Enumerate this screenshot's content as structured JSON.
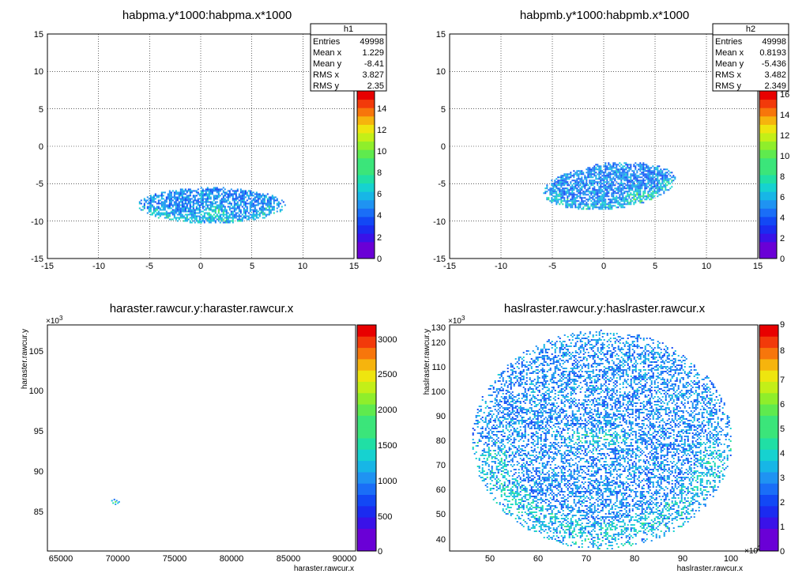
{
  "chart_data": [
    {
      "type": "heatmap",
      "title": "habpma.y*1000:habpma.x*1000",
      "xlabel": "",
      "ylabel": "",
      "xlim": [
        -15,
        15
      ],
      "ylim": [
        -15,
        15
      ],
      "x_ticks": [
        "-15",
        "-10",
        "-5",
        "0",
        "5",
        "10",
        "15"
      ],
      "y_ticks": [
        "-15",
        "-10",
        "-5",
        "0",
        "5",
        "10",
        "15"
      ],
      "grid": true,
      "colorbar": {
        "min": 0,
        "max": 16,
        "ticks": [
          "0",
          "2",
          "4",
          "6",
          "8",
          "10",
          "12",
          "14"
        ]
      },
      "stats_box": {
        "name": "h1",
        "rows": [
          {
            "label": "Entries",
            "value": "49998"
          },
          {
            "label": "Mean x",
            "value": "1.229"
          },
          {
            "label": "Mean y",
            "value": "-8.41"
          },
          {
            "label": "RMS x",
            "value": "3.827"
          },
          {
            "label": "RMS y",
            "value": "2.35"
          }
        ]
      },
      "distribution": {
        "shape": "ellipse",
        "center": [
          1.0,
          -7.8
        ],
        "semi_axes": [
          7.2,
          2.4
        ],
        "hot_spot": [
          1.4,
          -8.7
        ]
      }
    },
    {
      "type": "heatmap",
      "title": "habpmb.y*1000:habpmb.x*1000",
      "xlabel": "",
      "ylabel": "",
      "xlim": [
        -15,
        15
      ],
      "ylim": [
        -15,
        15
      ],
      "x_ticks": [
        "-15",
        "-10",
        "-5",
        "0",
        "5",
        "10",
        "15"
      ],
      "y_ticks": [
        "-15",
        "-10",
        "-5",
        "0",
        "5",
        "10",
        "15"
      ],
      "grid": true,
      "colorbar": {
        "min": 0,
        "max": 16,
        "ticks": [
          "0",
          "2",
          "4",
          "6",
          "8",
          "10",
          "12",
          "14",
          "16"
        ]
      },
      "stats_box": {
        "name": "h2",
        "rows": [
          {
            "label": "Entries",
            "value": "49998"
          },
          {
            "label": "Mean x",
            "value": "0.8193"
          },
          {
            "label": "Mean y",
            "value": "-5.436"
          },
          {
            "label": "RMS x",
            "value": "3.482"
          },
          {
            "label": "RMS y",
            "value": "2.349"
          }
        ]
      },
      "distribution": {
        "shape": "ellipse",
        "center": [
          0.5,
          -5.2
        ],
        "semi_axes": [
          6.5,
          3.1
        ],
        "tilt_deg": 10,
        "hot_spot": [
          3.5,
          -6.5
        ]
      }
    },
    {
      "type": "heatmap",
      "title": "haraster.rawcur.y:haraster.rawcur.x",
      "xlabel": "haraster.rawcur.x",
      "ylabel": "haraster.rawcur.y",
      "xlim": [
        64000,
        91000
      ],
      "ylim": [
        80000,
        109000
      ],
      "x_ticks": [
        "65000",
        "70000",
        "75000",
        "80000",
        "85000",
        "90000"
      ],
      "y_ticks": [
        "85",
        "90",
        "95",
        "100",
        "105"
      ],
      "y_multiplier": "×10",
      "y_multiplier_exp": "3",
      "colorbar": {
        "min": 0,
        "max": 3200,
        "ticks": [
          "0",
          "500",
          "1000",
          "1500",
          "2000",
          "2500",
          "3000"
        ]
      },
      "distribution": {
        "shape": "point",
        "center": [
          69900,
          86400
        ]
      }
    },
    {
      "type": "heatmap",
      "title": "haslraster.rawcur.y:haslraster.rawcur.x",
      "xlabel": "haslraster.rawcur.x",
      "ylabel": "haslraster.rawcur.y",
      "xlim": [
        42,
        106
      ],
      "ylim": [
        34,
        131
      ],
      "x_ticks": [
        "50",
        "60",
        "70",
        "80",
        "90",
        "100"
      ],
      "x_multiplier": "×10",
      "x_multiplier_exp": "3",
      "y_ticks": [
        "40",
        "50",
        "60",
        "70",
        "80",
        "90",
        "100",
        "110",
        "120",
        "130"
      ],
      "y_multiplier": "×10",
      "y_multiplier_exp": "3",
      "colorbar": {
        "min": 0,
        "max": 9,
        "ticks": [
          "0",
          "1",
          "2",
          "3",
          "4",
          "5",
          "6",
          "7",
          "8",
          "9"
        ]
      },
      "distribution": {
        "shape": "ellipse",
        "center": [
          73.5,
          82
        ],
        "semi_axes": [
          27,
          47
        ],
        "hot_spot": [
          73,
          83
        ]
      }
    }
  ]
}
